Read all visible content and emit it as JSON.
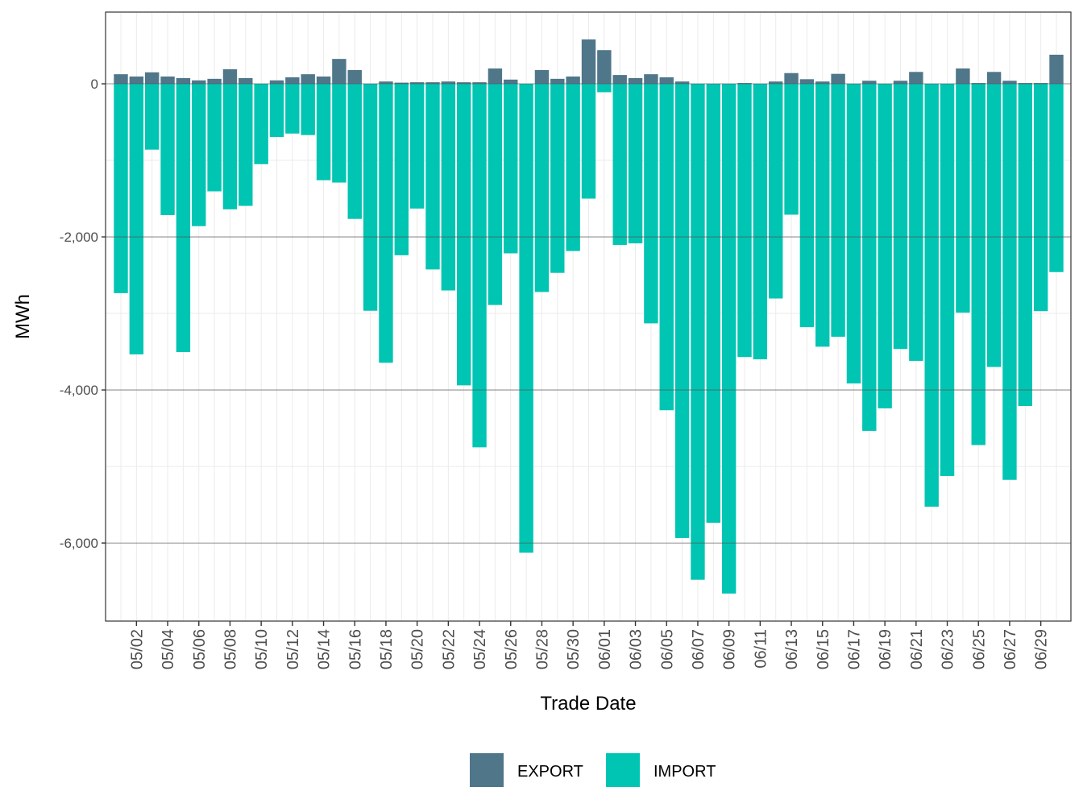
{
  "chart_data": {
    "type": "bar",
    "stacked": true,
    "title": "",
    "xlabel": "Trade Date",
    "ylabel": "MWh",
    "ylim": [
      -7020,
      937
    ],
    "y_major_ticks": [
      0,
      -2000,
      -4000,
      -6000
    ],
    "y_tick_labels": [
      "0",
      "-2,000",
      "-4,000",
      "-6,000"
    ],
    "y_minor_gridlines": [
      -1000,
      -3000,
      -5000
    ],
    "grid": true,
    "legend_position": "bottom",
    "categories": [
      "05/01",
      "05/02",
      "05/03",
      "05/04",
      "05/05",
      "05/06",
      "05/07",
      "05/08",
      "05/09",
      "05/10",
      "05/11",
      "05/12",
      "05/13",
      "05/14",
      "05/15",
      "05/16",
      "05/17",
      "05/18",
      "05/19",
      "05/20",
      "05/21",
      "05/22",
      "05/23",
      "05/24",
      "05/25",
      "05/26",
      "05/27",
      "05/28",
      "05/29",
      "05/30",
      "05/31",
      "06/01",
      "06/02",
      "06/03",
      "06/04",
      "06/05",
      "06/06",
      "06/07",
      "06/08",
      "06/09",
      "06/10",
      "06/11",
      "06/12",
      "06/13",
      "06/14",
      "06/15",
      "06/16",
      "06/17",
      "06/18",
      "06/19",
      "06/20",
      "06/21",
      "06/22",
      "06/23",
      "06/24",
      "06/25",
      "06/26",
      "06/27",
      "06/28",
      "06/29",
      "06/30"
    ],
    "x_tick_labels": [
      "05/02",
      "05/04",
      "05/06",
      "05/08",
      "05/10",
      "05/12",
      "05/14",
      "05/16",
      "05/18",
      "05/20",
      "05/22",
      "05/24",
      "05/26",
      "05/28",
      "05/30",
      "06/01",
      "06/03",
      "06/05",
      "06/07",
      "06/09",
      "06/11",
      "06/13",
      "06/15",
      "06/17",
      "06/19",
      "06/21",
      "06/23",
      "06/25",
      "06/27",
      "06/29"
    ],
    "series": [
      {
        "name": "EXPORT",
        "color": "#50768a",
        "values": [
          125,
          95,
          150,
          95,
          75,
          45,
          65,
          190,
          75,
          0,
          45,
          85,
          125,
          95,
          325,
          180,
          0,
          30,
          15,
          20,
          20,
          30,
          20,
          20,
          200,
          55,
          0,
          180,
          65,
          95,
          580,
          440,
          115,
          75,
          125,
          85,
          30,
          0,
          0,
          0,
          10,
          0,
          30,
          140,
          60,
          30,
          130,
          0,
          40,
          0,
          40,
          155,
          0,
          0,
          200,
          10,
          155,
          40,
          10,
          10,
          380
        ]
      },
      {
        "name": "IMPORT",
        "color": "#00c5b2",
        "values": [
          -2735,
          -3535,
          -860,
          -1715,
          -3505,
          -1860,
          -1405,
          -1640,
          -1595,
          -1050,
          -695,
          -650,
          -670,
          -1260,
          -1290,
          -1765,
          -2965,
          -3645,
          -2240,
          -1630,
          -2425,
          -2700,
          -3940,
          -4750,
          -2890,
          -2215,
          -6125,
          -2720,
          -2470,
          -2185,
          -1500,
          -110,
          -2105,
          -2085,
          -3130,
          -4265,
          -5935,
          -6480,
          -5735,
          -6660,
          -3570,
          -3600,
          -2805,
          -1710,
          -3180,
          -3435,
          -3305,
          -3915,
          -4535,
          -4240,
          -3465,
          -3620,
          -5525,
          -5125,
          -2990,
          -4720,
          -3700,
          -5175,
          -4210,
          -2970,
          -2460
        ]
      }
    ]
  }
}
